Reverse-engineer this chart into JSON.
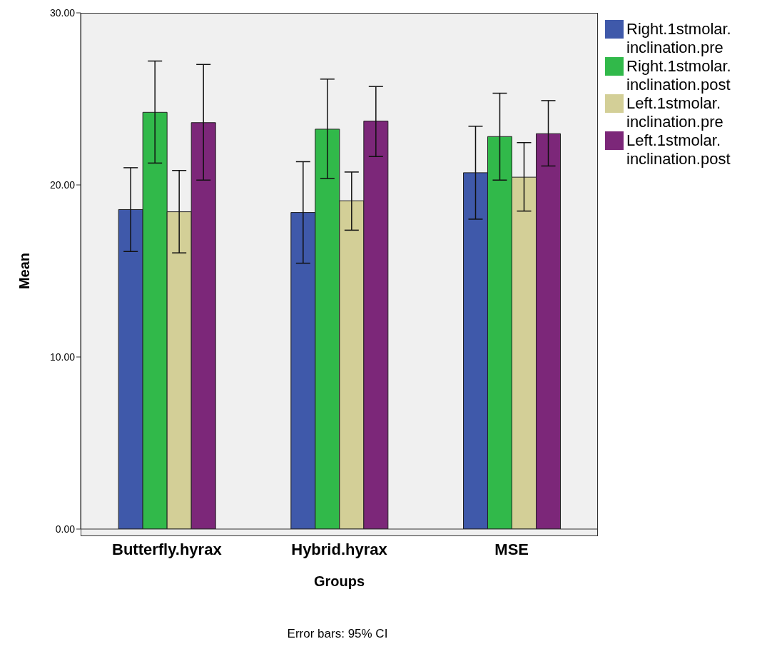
{
  "chart_data": {
    "type": "bar",
    "xlabel": "Groups",
    "ylabel": "Mean",
    "categories": [
      "Butterfly.hyrax",
      "Hybrid.hyrax",
      "MSE"
    ],
    "series": [
      {
        "name": "Right.1stmolar.inclination.pre",
        "color": "#3f59aa",
        "values": [
          18.57,
          18.4,
          20.71
        ],
        "errors": [
          [
            16.13,
            21.0
          ],
          [
            15.45,
            21.35
          ],
          [
            18.01,
            23.41
          ]
        ]
      },
      {
        "name": "Right.1stmolar.inclination.post",
        "color": "#31b94a",
        "values": [
          24.22,
          23.24,
          22.81
        ],
        "errors": [
          [
            21.27,
            27.2
          ],
          [
            20.37,
            26.15
          ],
          [
            20.28,
            25.33
          ]
        ]
      },
      {
        "name": "Left.1stmolar.inclination.pre",
        "color": "#d3cf97",
        "values": [
          18.44,
          19.08,
          20.45
        ],
        "errors": [
          [
            16.05,
            20.84
          ],
          [
            17.37,
            20.75
          ],
          [
            18.48,
            22.46
          ]
        ]
      },
      {
        "name": "Left.1stmolar.inclination.post",
        "color": "#7c2779",
        "values": [
          23.62,
          23.71,
          22.98
        ],
        "errors": [
          [
            20.28,
            27.0
          ],
          [
            21.65,
            25.72
          ],
          [
            21.1,
            24.9
          ]
        ]
      }
    ],
    "ylim": [
      0,
      30
    ],
    "yticks": [
      {
        "value": 0,
        "label": "0.00"
      },
      {
        "value": 10,
        "label": "10.00"
      },
      {
        "value": 20,
        "label": "20.00"
      },
      {
        "value": 30,
        "label": "30.00"
      }
    ],
    "grid": false,
    "legend": "top right",
    "annotations": [
      "Error bars: 95% CI"
    ]
  }
}
